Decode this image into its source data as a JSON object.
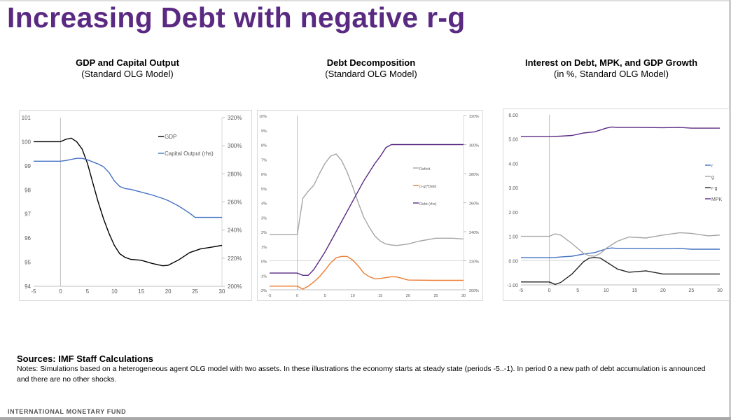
{
  "slide_title": "Increasing Debt with negative r-g",
  "colors": {
    "title": "#5a2a82"
  },
  "chart_data": [
    {
      "type": "line",
      "title": "GDP and Capital Output",
      "subtitle": "(Standard OLG Model)",
      "xlim": [
        -5,
        30
      ],
      "xticks": [
        "-5",
        "0",
        "5",
        "10",
        "15",
        "20",
        "25",
        "30"
      ],
      "ylim": [
        94,
        101
      ],
      "yticks": [
        "94",
        "95",
        "96",
        "97",
        "98",
        "99",
        "100",
        "101"
      ],
      "y2lim": [
        200,
        320
      ],
      "y2ticks": [
        "200%",
        "220%",
        "240%",
        "260%",
        "280%",
        "300%",
        "320%"
      ],
      "legend_position": "top-right",
      "series": [
        {
          "name": "GDP",
          "axis": "left",
          "color": "#000000",
          "points": [
            [
              -5,
              100
            ],
            [
              0,
              100
            ],
            [
              1,
              100.1
            ],
            [
              2,
              100.15
            ],
            [
              3,
              100.0
            ],
            [
              4,
              99.7
            ],
            [
              5,
              99.1
            ],
            [
              6,
              98.3
            ],
            [
              7,
              97.5
            ],
            [
              8,
              96.8
            ],
            [
              9,
              96.2
            ],
            [
              10,
              95.7
            ],
            [
              11,
              95.35
            ],
            [
              12,
              95.2
            ],
            [
              13,
              95.12
            ],
            [
              15,
              95.08
            ],
            [
              17,
              94.95
            ],
            [
              19,
              94.85
            ],
            [
              20,
              94.87
            ],
            [
              22,
              95.1
            ],
            [
              24,
              95.4
            ],
            [
              26,
              95.55
            ],
            [
              28,
              95.62
            ],
            [
              30,
              95.7
            ]
          ]
        },
        {
          "name": "Capital Output (rhs)",
          "axis": "right",
          "color": "#4472c4",
          "points": [
            [
              -5,
              289
            ],
            [
              0,
              289
            ],
            [
              1,
              289.5
            ],
            [
              3,
              291
            ],
            [
              4,
              291
            ],
            [
              5,
              290
            ],
            [
              6,
              288.5
            ],
            [
              7,
              287
            ],
            [
              8,
              285
            ],
            [
              9,
              281
            ],
            [
              10,
              275
            ],
            [
              11,
              271
            ],
            [
              12,
              269.5
            ],
            [
              13,
              269
            ],
            [
              15,
              267
            ],
            [
              17,
              265
            ],
            [
              19,
              262.5
            ],
            [
              20,
              261
            ],
            [
              22,
              257
            ],
            [
              24,
              252
            ],
            [
              25,
              249
            ],
            [
              30,
              249
            ]
          ]
        }
      ]
    },
    {
      "type": "line",
      "title": "Debt Decomposition",
      "subtitle": "(Standard OLG Model)",
      "xlim": [
        -5,
        30
      ],
      "xticks": [
        "-5",
        "0",
        "5",
        "10",
        "15",
        "20",
        "25",
        "30"
      ],
      "ylim": [
        -2,
        10
      ],
      "yticks": [
        "-2%",
        "-1%",
        "0%",
        "1%",
        "2%",
        "3%",
        "4%",
        "5%",
        "6%",
        "7%",
        "8%",
        "9%",
        "10%"
      ],
      "y2lim": [
        200,
        320
      ],
      "y2ticks": [
        "200%",
        "220%",
        "240%",
        "260%",
        "280%",
        "300%",
        "320%"
      ],
      "legend_position": "right",
      "series": [
        {
          "name": "Deficit",
          "axis": "left",
          "color": "#a5a5a5",
          "points": [
            [
              -5,
              1.8
            ],
            [
              0,
              1.8
            ],
            [
              1,
              4.3
            ],
            [
              2,
              4.8
            ],
            [
              3,
              5.2
            ],
            [
              4,
              6.0
            ],
            [
              5,
              6.7
            ],
            [
              6,
              7.2
            ],
            [
              7,
              7.35
            ],
            [
              8,
              6.9
            ],
            [
              9,
              6.1
            ],
            [
              10,
              5.1
            ],
            [
              11,
              4.0
            ],
            [
              12,
              3.0
            ],
            [
              13,
              2.3
            ],
            [
              14,
              1.7
            ],
            [
              15,
              1.35
            ],
            [
              16,
              1.15
            ],
            [
              17,
              1.08
            ],
            [
              18,
              1.05
            ],
            [
              20,
              1.15
            ],
            [
              22,
              1.35
            ],
            [
              25,
              1.55
            ],
            [
              28,
              1.55
            ],
            [
              30,
              1.5
            ]
          ]
        },
        {
          "name": "(r-g)*Debt",
          "axis": "left",
          "color": "#ed7d31",
          "points": [
            [
              -5,
              -1.75
            ],
            [
              0,
              -1.75
            ],
            [
              1,
              -1.95
            ],
            [
              2,
              -1.75
            ],
            [
              3,
              -1.45
            ],
            [
              4,
              -1.1
            ],
            [
              5,
              -0.65
            ],
            [
              6,
              -0.15
            ],
            [
              7,
              0.2
            ],
            [
              8,
              0.3
            ],
            [
              9,
              0.3
            ],
            [
              10,
              0.05
            ],
            [
              11,
              -0.35
            ],
            [
              12,
              -0.85
            ],
            [
              13,
              -1.1
            ],
            [
              14,
              -1.25
            ],
            [
              15,
              -1.22
            ],
            [
              17,
              -1.1
            ],
            [
              18,
              -1.12
            ],
            [
              20,
              -1.33
            ],
            [
              25,
              -1.35
            ],
            [
              30,
              -1.35
            ]
          ]
        },
        {
          "name": "Debt (rhs)",
          "axis": "right",
          "color": "#5a2a82",
          "points": [
            [
              -5,
              211.5
            ],
            [
              0,
              211.5
            ],
            [
              1,
              210
            ],
            [
              2,
              210
            ],
            [
              3,
              214
            ],
            [
              4,
              220
            ],
            [
              5,
              226
            ],
            [
              6,
              233
            ],
            [
              7,
              240
            ],
            [
              8,
              247
            ],
            [
              9,
              254
            ],
            [
              10,
              261
            ],
            [
              11,
              268
            ],
            [
              12,
              275
            ],
            [
              13,
              281
            ],
            [
              14,
              287
            ],
            [
              15,
              292
            ],
            [
              16,
              298
            ],
            [
              17,
              300
            ],
            [
              30,
              300
            ]
          ]
        }
      ]
    },
    {
      "type": "line",
      "title": "Interest on Debt, MPK, and GDP Growth",
      "subtitle": "(in %, Standard OLG Model)",
      "xlim": [
        -5,
        30
      ],
      "xticks": [
        "-5",
        "0",
        "5",
        "10",
        "15",
        "20",
        "25",
        "30"
      ],
      "ylim": [
        -1,
        6
      ],
      "yticks": [
        "-1.00",
        "0.00",
        "1.00",
        "2.00",
        "3.00",
        "4.00",
        "5.00",
        "6.00"
      ],
      "legend_position": "right",
      "series": [
        {
          "name": "r",
          "axis": "left",
          "color": "#4472c4",
          "points": [
            [
              -5,
              0.12
            ],
            [
              0,
              0.12
            ],
            [
              1,
              0.13
            ],
            [
              2,
              0.15
            ],
            [
              4,
              0.18
            ],
            [
              6,
              0.27
            ],
            [
              8,
              0.33
            ],
            [
              10,
              0.48
            ],
            [
              11,
              0.52
            ],
            [
              12,
              0.5
            ],
            [
              15,
              0.5
            ],
            [
              20,
              0.49
            ],
            [
              23,
              0.5
            ],
            [
              25,
              0.47
            ],
            [
              30,
              0.47
            ]
          ]
        },
        {
          "name": "g",
          "axis": "left",
          "color": "#a5a5a5",
          "points": [
            [
              -5,
              1.0
            ],
            [
              0,
              1.0
            ],
            [
              1,
              1.1
            ],
            [
              2,
              1.05
            ],
            [
              4,
              0.7
            ],
            [
              6,
              0.3
            ],
            [
              7,
              0.2
            ],
            [
              8,
              0.18
            ],
            [
              9,
              0.3
            ],
            [
              10,
              0.5
            ],
            [
              12,
              0.8
            ],
            [
              14,
              0.97
            ],
            [
              17,
              0.93
            ],
            [
              20,
              1.05
            ],
            [
              23,
              1.15
            ],
            [
              25,
              1.12
            ],
            [
              28,
              1.02
            ],
            [
              30,
              1.05
            ]
          ]
        },
        {
          "name": "r-g",
          "axis": "left",
          "color": "#262626",
          "points": [
            [
              -5,
              -0.88
            ],
            [
              0,
              -0.88
            ],
            [
              1,
              -0.98
            ],
            [
              2,
              -0.9
            ],
            [
              4,
              -0.55
            ],
            [
              6,
              -0.05
            ],
            [
              7,
              0.1
            ],
            [
              8,
              0.13
            ],
            [
              9,
              0.1
            ],
            [
              10,
              -0.05
            ],
            [
              12,
              -0.35
            ],
            [
              14,
              -0.48
            ],
            [
              17,
              -0.42
            ],
            [
              20,
              -0.55
            ],
            [
              30,
              -0.55
            ]
          ]
        },
        {
          "name": "MPK",
          "axis": "left",
          "color": "#5a2a82",
          "points": [
            [
              -5,
              5.1
            ],
            [
              0,
              5.1
            ],
            [
              2,
              5.12
            ],
            [
              4,
              5.15
            ],
            [
              5,
              5.2
            ],
            [
              6,
              5.25
            ],
            [
              8,
              5.3
            ],
            [
              10,
              5.45
            ],
            [
              11,
              5.5
            ],
            [
              12,
              5.48
            ],
            [
              15,
              5.48
            ],
            [
              20,
              5.47
            ],
            [
              23,
              5.48
            ],
            [
              25,
              5.45
            ],
            [
              30,
              5.45
            ]
          ]
        }
      ]
    }
  ],
  "sources": "Sources: IMF Staff Calculations",
  "notes": "Notes: Simulations based on a heterogeneous agent OLG model with two assets. In these illustrations the economy starts at steady state (periods -5..-1). In period 0 a new path of debt accumulation is announced and there are no other shocks.",
  "footer": "INTERNATIONAL MONETARY FUND"
}
